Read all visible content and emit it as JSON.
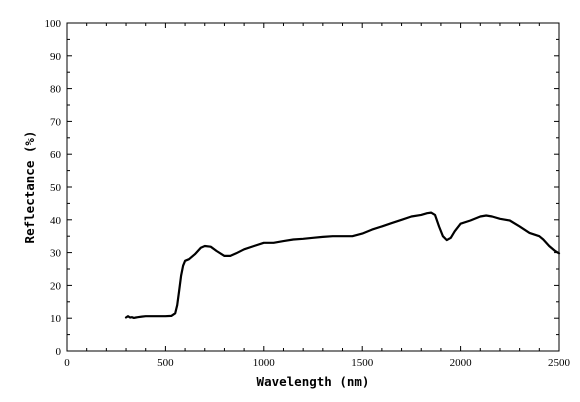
{
  "chart_data": {
    "type": "line",
    "title": "",
    "xlabel": "Wavelength (nm)",
    "ylabel": "Reflectance (%)",
    "xlim": [
      0,
      2500
    ],
    "ylim": [
      0,
      100
    ],
    "grid": false,
    "x_ticks": [
      0,
      500,
      1000,
      1500,
      2000,
      2500
    ],
    "y_ticks": [
      0,
      10,
      20,
      30,
      40,
      50,
      60,
      70,
      80,
      90,
      100
    ],
    "series": [
      {
        "x": [
          300,
          310,
          320,
          330,
          340,
          350,
          360,
          380,
          400,
          450,
          500,
          530,
          550,
          560,
          570,
          580,
          590,
          600,
          620,
          650,
          680,
          700,
          730,
          760,
          800,
          830,
          860,
          900,
          950,
          1000,
          1050,
          1100,
          1150,
          1200,
          1250,
          1300,
          1350,
          1400,
          1450,
          1500,
          1550,
          1600,
          1650,
          1700,
          1750,
          1800,
          1830,
          1850,
          1870,
          1890,
          1910,
          1930,
          1950,
          1970,
          2000,
          2050,
          2100,
          2130,
          2160,
          2200,
          2250,
          2300,
          2350,
          2400,
          2420,
          2450,
          2480,
          2500
        ],
        "y": [
          10.2,
          10.6,
          10.2,
          10.3,
          10.1,
          10.2,
          10.3,
          10.5,
          10.6,
          10.6,
          10.6,
          10.7,
          11.5,
          14.0,
          18.5,
          23.0,
          26.0,
          27.5,
          28.0,
          29.5,
          31.5,
          32.0,
          31.8,
          30.5,
          29.0,
          29.0,
          29.8,
          31.0,
          32.0,
          33.0,
          33.0,
          33.5,
          34.0,
          34.2,
          34.5,
          34.8,
          35.0,
          35.0,
          35.0,
          35.8,
          37.0,
          38.0,
          39.0,
          40.0,
          41.0,
          41.5,
          42.0,
          42.2,
          41.5,
          38.0,
          35.0,
          33.8,
          34.5,
          36.5,
          38.8,
          39.8,
          41.0,
          41.3,
          41.0,
          40.3,
          39.8,
          38.0,
          36.0,
          35.0,
          34.0,
          32.0,
          30.5,
          29.8
        ]
      }
    ]
  }
}
